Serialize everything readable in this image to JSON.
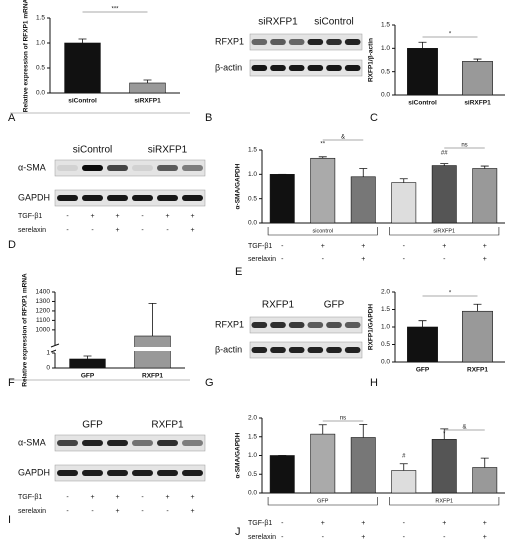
{
  "panel_letters": [
    "A",
    "B",
    "C",
    "D",
    "E",
    "F",
    "G",
    "H",
    "I",
    "J"
  ],
  "chart_data": [
    {
      "type": "bar",
      "ylabel": "Relative expression of RFXP1 mRNA",
      "categories": [
        "siControl",
        "siRXFP1"
      ],
      "values": [
        1.0,
        0.2
      ],
      "errors": [
        0.08,
        0.06
      ],
      "colors": [
        "#111111",
        "#999999"
      ],
      "ylim": [
        0,
        1.5
      ],
      "yticks": [
        {
          "value": 0,
          "label": "0.0"
        },
        {
          "value": 0.5,
          "label": "0.5"
        },
        {
          "value": 1,
          "label": "1.0"
        },
        {
          "value": 1.5,
          "label": "1.5"
        }
      ],
      "annotations": [
        "***"
      ]
    },
    {
      "type": "bar",
      "ylabel": "RXFP1/β-actin",
      "categories": [
        "siControl",
        "siRXFP1"
      ],
      "values": [
        1.0,
        0.72
      ],
      "errors": [
        0.13,
        0.05
      ],
      "colors": [
        "#111111",
        "#999999"
      ],
      "ylim": [
        0,
        1.5
      ],
      "yticks": [
        {
          "value": 0,
          "label": "0.0"
        },
        {
          "value": 0.5,
          "label": "0.5"
        },
        {
          "value": 1,
          "label": "1.0"
        },
        {
          "value": 1.5,
          "label": "1.5"
        }
      ],
      "annotations": [
        "*"
      ]
    },
    {
      "type": "bar",
      "ylabel": "α-SMA/GAPDH",
      "values": [
        1.0,
        1.33,
        0.95,
        0.83,
        1.18,
        1.12
      ],
      "errors": [
        0,
        0.03,
        0.17,
        0.08,
        0.04,
        0.05
      ],
      "colors": [
        "#111111",
        "#aaaaaa",
        "#777777",
        "#dddddd",
        "#555555",
        "#999999"
      ],
      "ylim": [
        0,
        1.5
      ],
      "yticks": [
        {
          "value": 0,
          "label": "0.0"
        },
        {
          "value": 0.5,
          "label": "0.5"
        },
        {
          "value": 1,
          "label": "1.0"
        },
        {
          "value": 1.5,
          "label": "1.5"
        }
      ],
      "groups": [
        "sicontrol",
        "siRXFP1"
      ],
      "conditions": [
        {
          "label": "TGF-β1",
          "values": [
            "-",
            "+",
            "+",
            "-",
            "+",
            "+"
          ]
        },
        {
          "label": "serelaxin",
          "values": [
            "-",
            "-",
            "+",
            "-",
            "-",
            "+"
          ]
        }
      ],
      "annotations": [
        "&",
        "**",
        "ns",
        "##"
      ]
    },
    {
      "type": "bar",
      "ylabel": "Relative expression of RFXP1 mRNA",
      "categories": [
        "GFP",
        "RXFP1"
      ],
      "values": [
        0.6,
        935
      ],
      "errors": [
        0.2,
        345
      ],
      "colors": [
        "#111111",
        "#999999"
      ],
      "ylim": [
        0,
        1400
      ],
      "axis_break": [
        1,
        840
      ],
      "yticks": [
        0,
        1,
        1000,
        1100,
        1200,
        1300,
        1400
      ],
      "annotations": []
    },
    {
      "type": "bar",
      "ylabel": "RXFP1/GAPDH",
      "categories": [
        "GFP",
        "RXFP1"
      ],
      "values": [
        1.0,
        1.45
      ],
      "errors": [
        0.18,
        0.2
      ],
      "colors": [
        "#111111",
        "#999999"
      ],
      "ylim": [
        0,
        2
      ],
      "yticks": [
        {
          "value": 0,
          "label": "0.0"
        },
        {
          "value": 0.5,
          "label": "0.5"
        },
        {
          "value": 1,
          "label": "1.0"
        },
        {
          "value": 1.5,
          "label": "1.5"
        },
        {
          "value": 2,
          "label": "2.0"
        }
      ],
      "annotations": [
        "*"
      ]
    },
    {
      "type": "bar",
      "ylabel": "α-SMA/GAPDH",
      "values": [
        1.0,
        1.57,
        1.48,
        0.6,
        1.43,
        0.68
      ],
      "errors": [
        0,
        0.25,
        0.35,
        0.18,
        0.28,
        0.25
      ],
      "colors": [
        "#111111",
        "#aaaaaa",
        "#777777",
        "#dddddd",
        "#555555",
        "#999999"
      ],
      "ylim": [
        0,
        2
      ],
      "yticks": [
        {
          "value": 0,
          "label": "0.0"
        },
        {
          "value": 0.5,
          "label": "0.5"
        },
        {
          "value": 1,
          "label": "1.0"
        },
        {
          "value": 1.5,
          "label": "1.5"
        },
        {
          "value": 2,
          "label": "2.0"
        }
      ],
      "groups": [
        "GFP",
        "RXFP1"
      ],
      "conditions": [
        {
          "label": "TGF-β1",
          "values": [
            "-",
            "+",
            "+",
            "-",
            "+",
            "+"
          ]
        },
        {
          "label": "serelaxin",
          "values": [
            "-",
            "-",
            "+",
            "-",
            "-",
            "+"
          ]
        }
      ],
      "annotations": [
        "ns",
        "&",
        "*",
        "#"
      ]
    }
  ],
  "blots": [
    {
      "column_labels": [
        "siRXFP1",
        "siControl"
      ],
      "row_labels": [
        "RFXP1",
        "β-actin"
      ]
    },
    {
      "column_labels": [
        "siControl",
        "siRXFP1"
      ],
      "row_labels": [
        "α-SMA",
        "GAPDH"
      ],
      "conditions": [
        {
          "label": "TGF-β1",
          "values": [
            "-",
            "+",
            "+",
            "-",
            "+",
            "+"
          ]
        },
        {
          "label": "serelaxin",
          "values": [
            "-",
            "-",
            "+",
            "-",
            "-",
            "+"
          ]
        }
      ]
    },
    {
      "column_labels": [
        "RXFP1",
        "GFP"
      ],
      "row_labels": [
        "RFXP1",
        "β-actin"
      ]
    },
    {
      "column_labels": [
        "GFP",
        "RXFP1"
      ],
      "row_labels": [
        "α-SMA",
        "GAPDH"
      ],
      "conditions": [
        {
          "label": "TGF-β1",
          "values": [
            "-",
            "+",
            "+",
            "-",
            "+",
            "+"
          ]
        },
        {
          "label": "serelaxin",
          "values": [
            "-",
            "-",
            "+",
            "-",
            "-",
            "+"
          ]
        }
      ]
    }
  ]
}
